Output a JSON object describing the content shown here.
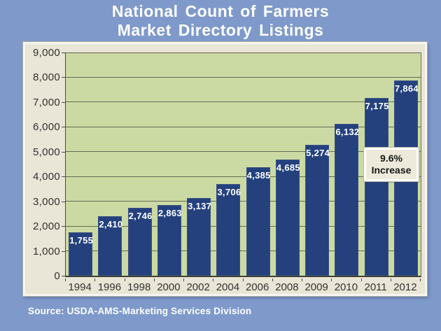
{
  "title": {
    "line1": "National Count of Farmers",
    "line2": "Market Directory Listings"
  },
  "source": "Source:  USDA-AMS-Marketing Services Division",
  "annotation": {
    "line1": "9.6%",
    "line2": "Increase"
  },
  "colors": {
    "page_background": "#7e99ca",
    "panel_background": "#e9e5d7",
    "plot_background": "#cbdaa2",
    "bar": "#24417e",
    "gridline": "#666a55",
    "title_text": "#ffffff",
    "axis_text": "#33332e",
    "annotation_background": "#edeadb"
  },
  "chart_data": {
    "type": "bar",
    "title": "National Count of Farmers Market Directory Listings",
    "categories": [
      "1994",
      "1996",
      "1998",
      "2000",
      "2002",
      "2004",
      "2006",
      "2008",
      "2009",
      "2010",
      "2011",
      "2012"
    ],
    "values": [
      1755,
      2410,
      2746,
      2863,
      3137,
      3706,
      4385,
      4685,
      5274,
      6132,
      7175,
      7864
    ],
    "value_labels": [
      "1,755",
      "2,410",
      "2,746",
      "2,863",
      "3,137",
      "3,706",
      "4,385",
      "4,685",
      "5,274",
      "6,132",
      "7,175",
      "7,864"
    ],
    "xlabel": "",
    "ylabel": "",
    "ylim": [
      0,
      9000
    ],
    "ytick_step": 1000,
    "ytick_labels": [
      "0",
      "1,000",
      "2,000",
      "3,000",
      "4,000",
      "5,000",
      "6,000",
      "7,000",
      "8,000",
      "9,000"
    ],
    "grid": true,
    "legend": null,
    "annotation": "9.6% Increase",
    "source": "Source: USDA-AMS-Marketing Services Division"
  }
}
